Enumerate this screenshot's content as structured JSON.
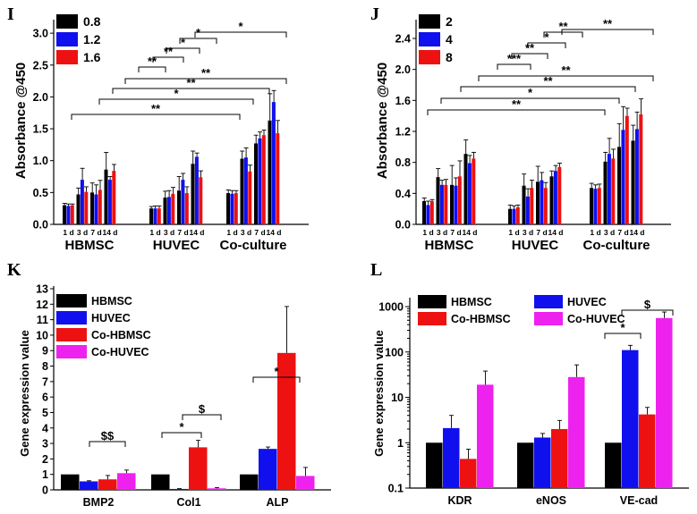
{
  "chart_data": [
    {
      "panel": "I",
      "type": "bar",
      "ylabel": "Absorbance @450",
      "ylim": [
        0,
        3.1
      ],
      "yticks": [
        "0.0",
        "0.5",
        "1.0",
        "1.5",
        "2.0",
        "2.5",
        "3.0"
      ],
      "groups": [
        "HBMSC",
        "HUVEC",
        "Co-culture"
      ],
      "timepoints": [
        "1 d",
        "3 d",
        "7 d",
        "14 d"
      ],
      "colors": [
        "#000000",
        "#1010ee",
        "#ee1111"
      ],
      "series": [
        {
          "name": "0.8",
          "values": [
            0.3,
            0.47,
            0.5,
            0.86,
            0.25,
            0.42,
            0.53,
            0.95,
            0.49,
            1.03,
            1.27,
            1.63
          ],
          "err": [
            0.03,
            0.1,
            0.15,
            0.27,
            0.03,
            0.1,
            0.22,
            0.2,
            0.05,
            0.12,
            0.13,
            0.42
          ]
        },
        {
          "name": "1.2",
          "values": [
            0.29,
            0.7,
            0.47,
            0.7,
            0.25,
            0.43,
            0.7,
            1.06,
            0.48,
            1.05,
            1.35,
            1.92
          ],
          "err": [
            0.03,
            0.18,
            0.15,
            0.05,
            0.04,
            0.1,
            0.1,
            0.06,
            0.05,
            0.15,
            0.1,
            0.18
          ]
        },
        {
          "name": "1.6",
          "values": [
            0.3,
            0.51,
            0.54,
            0.84,
            0.25,
            0.48,
            0.49,
            0.74,
            0.49,
            0.83,
            1.4,
            1.43
          ],
          "err": [
            0.02,
            0.08,
            0.15,
            0.1,
            0.04,
            0.1,
            0.1,
            0.1,
            0.04,
            0.1,
            0.08,
            0.2
          ]
        }
      ],
      "annotations": [
        "**",
        "*",
        "**",
        "**",
        "**",
        "**",
        "*"
      ]
    },
    {
      "panel": "J",
      "type": "bar",
      "ylabel": "Absorbance @450",
      "ylim": [
        0,
        2.55
      ],
      "yticks": [
        "0.0",
        "0.4",
        "0.8",
        "1.2",
        "1.6",
        "2.0",
        "2.4"
      ],
      "groups": [
        "HBMSC",
        "HUVEC",
        "Co-culture"
      ],
      "timepoints": [
        "1 d",
        "3 d",
        "7 d",
        "14 d"
      ],
      "colors": [
        "#000000",
        "#1010ee",
        "#ee1111"
      ],
      "series": [
        {
          "name": "2",
          "values": [
            0.3,
            0.61,
            0.51,
            0.91,
            0.2,
            0.5,
            0.55,
            0.62,
            0.47,
            0.81,
            1.0,
            1.08
          ],
          "err": [
            0.04,
            0.11,
            0.25,
            0.18,
            0.05,
            0.15,
            0.2,
            0.07,
            0.06,
            0.12,
            0.3,
            0.2
          ]
        },
        {
          "name": "4",
          "values": [
            0.25,
            0.51,
            0.5,
            0.79,
            0.2,
            0.36,
            0.57,
            0.69,
            0.46,
            0.91,
            1.22,
            1.23
          ],
          "err": [
            0.05,
            0.06,
            0.1,
            0.1,
            0.04,
            0.1,
            0.1,
            0.07,
            0.05,
            0.2,
            0.3,
            0.22
          ]
        },
        {
          "name": "8",
          "values": [
            0.3,
            0.51,
            0.62,
            0.85,
            0.22,
            0.47,
            0.47,
            0.74,
            0.47,
            0.85,
            1.4,
            1.42
          ],
          "err": [
            0.02,
            0.07,
            0.2,
            0.08,
            0.03,
            0.1,
            0.07,
            0.05,
            0.05,
            0.12,
            0.1,
            0.2
          ]
        }
      ],
      "annotations": [
        "**",
        "*",
        "**",
        "**",
        "***",
        "**",
        "*",
        "**"
      ]
    },
    {
      "panel": "K",
      "type": "bar",
      "ylabel": "Gene expression value",
      "ylim": [
        0,
        13
      ],
      "yticks": [
        "0",
        "1",
        "2",
        "3",
        "4",
        "5",
        "6",
        "7",
        "8",
        "9",
        "10",
        "11",
        "12",
        "13"
      ],
      "categories": [
        "BMP2",
        "Col1",
        "ALP"
      ],
      "colors": [
        "#000000",
        "#1010ee",
        "#ee1111",
        "#ee22ee"
      ],
      "series": [
        {
          "name": "HBMSC",
          "values": [
            1.0,
            1.0,
            1.0
          ],
          "err": [
            0,
            0,
            0
          ]
        },
        {
          "name": "HUVEC",
          "values": [
            0.55,
            0.06,
            2.65
          ],
          "err": [
            0.04,
            0.02,
            0.12
          ]
        },
        {
          "name": "Co-HBMSC",
          "values": [
            0.68,
            2.75,
            8.85
          ],
          "err": [
            0.25,
            0.45,
            3.0
          ]
        },
        {
          "name": "Co-HUVEC",
          "values": [
            1.08,
            0.1,
            0.9
          ],
          "err": [
            0.2,
            0.05,
            0.55
          ]
        }
      ],
      "annotations": [
        "$$",
        "*",
        "$",
        "*"
      ]
    },
    {
      "panel": "L",
      "type": "bar",
      "scale": "log",
      "ylabel": "Gene expression value",
      "ylim": [
        0.1,
        1000
      ],
      "yticks": [
        "0.1",
        "1",
        "10",
        "100",
        "1000"
      ],
      "categories": [
        "KDR",
        "eNOS",
        "VE-cad"
      ],
      "colors": [
        "#000000",
        "#1010ee",
        "#ee1111",
        "#ee22ee"
      ],
      "series": [
        {
          "name": "HBMSC",
          "values": [
            1.0,
            1.0,
            1.0
          ],
          "err": [
            1.0,
            1.0,
            1.0
          ]
        },
        {
          "name": "HUVEC",
          "values": [
            2.1,
            1.3,
            110
          ],
          "err": [
            4.0,
            1.6,
            140
          ]
        },
        {
          "name": "Co-HBMSC",
          "values": [
            0.44,
            2.0,
            4.2
          ],
          "err": [
            0.72,
            3.1,
            6.0
          ]
        },
        {
          "name": "Co-HUVEC",
          "values": [
            19,
            28,
            560
          ],
          "err": [
            38,
            52,
            760
          ]
        }
      ],
      "annotations": [
        "*",
        "$"
      ]
    }
  ]
}
